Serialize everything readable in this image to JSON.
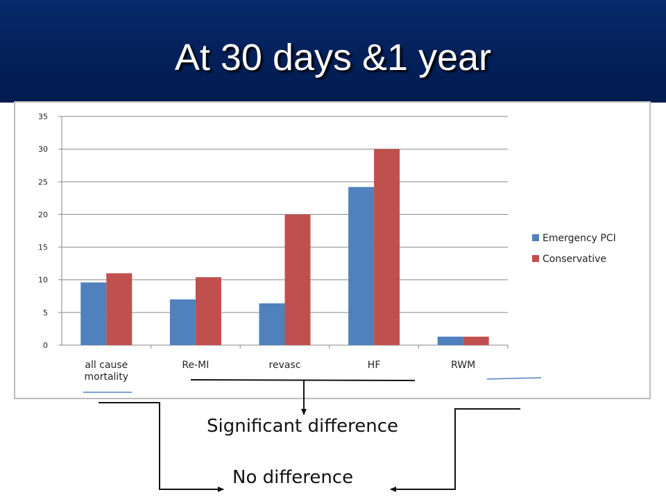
{
  "title": "At 30 days &1 year",
  "chart_data": {
    "type": "bar",
    "categories": [
      "all cause mortality",
      "Re-MI",
      "revasc",
      "HF",
      "RWM"
    ],
    "category_lines": [
      [
        "all cause",
        "mortality"
      ],
      [
        "Re-MI"
      ],
      [
        "revasc"
      ],
      [
        "HF"
      ],
      [
        "RWM"
      ]
    ],
    "series": [
      {
        "name": "Emergency PCI",
        "values": [
          9.6,
          7.0,
          6.4,
          24.2,
          1.3
        ],
        "color": "#4f81bd"
      },
      {
        "name": "Conservative",
        "values": [
          11.0,
          10.4,
          20.0,
          30.0,
          1.3
        ],
        "color": "#c0504d"
      }
    ],
    "y_ticks": [
      0,
      5,
      10,
      15,
      20,
      25,
      30,
      35
    ],
    "ylim": [
      0,
      35
    ],
    "grid": true,
    "legend_position": "right"
  },
  "annotations": {
    "significant": "Significant difference",
    "no_difference": "No difference"
  },
  "colors": {
    "header_bg": "#03205a",
    "title_text": "#ffffff",
    "grid": "#868686",
    "marker_line": "#4f81bd"
  }
}
